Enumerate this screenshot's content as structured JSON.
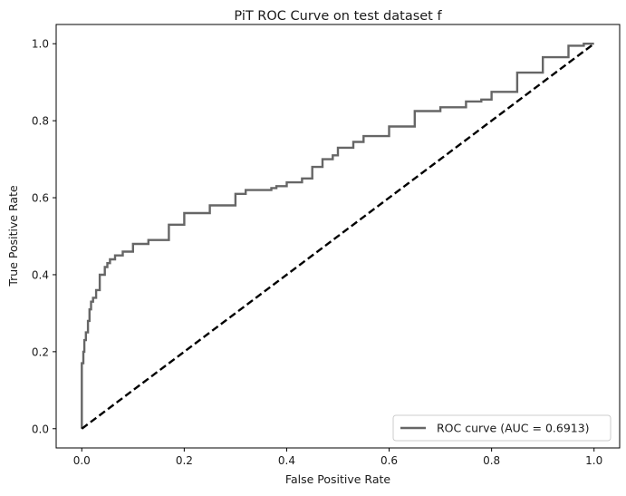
{
  "chart_data": {
    "type": "line",
    "title": "PiT ROC Curve on test dataset f",
    "xlabel": "False Positive Rate",
    "ylabel": "True Positive Rate",
    "xlim": [
      -0.05,
      1.05
    ],
    "ylim": [
      -0.05,
      1.05
    ],
    "xticks": [
      0.0,
      0.2,
      0.4,
      0.6,
      0.8,
      1.0
    ],
    "yticks": [
      0.0,
      0.2,
      0.4,
      0.6,
      0.8,
      1.0
    ],
    "xtick_labels": [
      "0.0",
      "0.2",
      "0.4",
      "0.6",
      "0.8",
      "1.0"
    ],
    "ytick_labels": [
      "0.0",
      "0.2",
      "0.4",
      "0.6",
      "0.8",
      "1.0"
    ],
    "grid": false,
    "legend_position": "lower-right",
    "series": [
      {
        "name": "ROC curve (AUC = 0.6913)",
        "color": "#666666",
        "style": "solid",
        "x": [
          0.0,
          0.0,
          0.003,
          0.005,
          0.008,
          0.012,
          0.015,
          0.018,
          0.022,
          0.028,
          0.035,
          0.045,
          0.05,
          0.055,
          0.065,
          0.08,
          0.1,
          0.13,
          0.17,
          0.2,
          0.25,
          0.3,
          0.32,
          0.37,
          0.38,
          0.4,
          0.43,
          0.45,
          0.47,
          0.49,
          0.5,
          0.53,
          0.55,
          0.6,
          0.65,
          0.7,
          0.75,
          0.78,
          0.8,
          0.85,
          0.9,
          0.95,
          0.98,
          1.0
        ],
        "y": [
          0.0,
          0.13,
          0.17,
          0.2,
          0.23,
          0.25,
          0.28,
          0.31,
          0.33,
          0.34,
          0.36,
          0.4,
          0.42,
          0.43,
          0.44,
          0.45,
          0.46,
          0.48,
          0.49,
          0.53,
          0.56,
          0.58,
          0.61,
          0.62,
          0.625,
          0.63,
          0.64,
          0.65,
          0.68,
          0.7,
          0.71,
          0.73,
          0.745,
          0.76,
          0.785,
          0.825,
          0.835,
          0.85,
          0.855,
          0.875,
          0.925,
          0.965,
          0.995,
          1.0
        ]
      },
      {
        "name": "",
        "color": "#000000",
        "style": "dashed",
        "x": [
          0.0,
          1.0
        ],
        "y": [
          0.0,
          1.0
        ]
      }
    ]
  }
}
